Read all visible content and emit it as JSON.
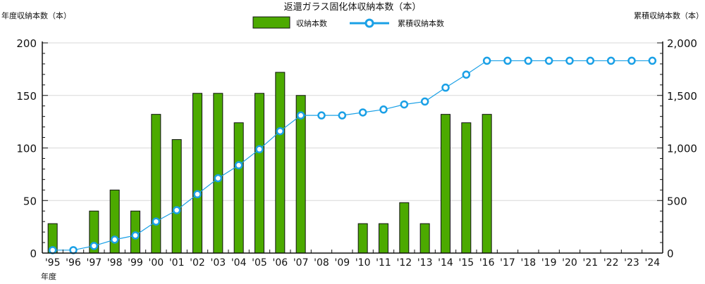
{
  "chart_data": {
    "type": "bar+line",
    "title": "返還ガラス固化体収納本数（本）",
    "xlabel": "年度",
    "ylabel_left": "年度収納本数（本）",
    "ylabel_right": "累積収納本数（本）",
    "categories": [
      "'95",
      "'96",
      "'97",
      "'98",
      "'99",
      "'00",
      "'01",
      "'02",
      "'03",
      "'04",
      "'05",
      "'06",
      "'07",
      "'08",
      "'09",
      "'10",
      "'11",
      "'12",
      "'13",
      "'14",
      "'15",
      "'16",
      "'17",
      "'18",
      "'19",
      "'20",
      "'21",
      "'22",
      "'23",
      "'24"
    ],
    "series": [
      {
        "name": "収納本数",
        "type": "bar",
        "axis": "left",
        "color": "#4caa00",
        "values": [
          28,
          0,
          40,
          60,
          40,
          132,
          108,
          152,
          152,
          124,
          152,
          172,
          150,
          0,
          0,
          28,
          28,
          48,
          28,
          132,
          124,
          132,
          0,
          0,
          0,
          0,
          0,
          0,
          0,
          0
        ]
      },
      {
        "name": "累積収納本数",
        "type": "line",
        "axis": "right",
        "color": "#1aa0e6",
        "values": [
          28,
          28,
          68,
          128,
          168,
          300,
          408,
          560,
          712,
          836,
          988,
          1160,
          1310,
          1310,
          1310,
          1338,
          1366,
          1414,
          1442,
          1574,
          1698,
          1830,
          1830,
          1830,
          1830,
          1830,
          1830,
          1830,
          1830,
          1830
        ]
      }
    ],
    "ylim_left": [
      0,
      200
    ],
    "yticks_left": [
      "0",
      "50",
      "100",
      "150",
      "200"
    ],
    "ylim_right": [
      0,
      2000
    ],
    "yticks_right": [
      "0",
      "500",
      "1,000",
      "1,500",
      "2,000"
    ],
    "grid": true,
    "legend": "top-center"
  }
}
